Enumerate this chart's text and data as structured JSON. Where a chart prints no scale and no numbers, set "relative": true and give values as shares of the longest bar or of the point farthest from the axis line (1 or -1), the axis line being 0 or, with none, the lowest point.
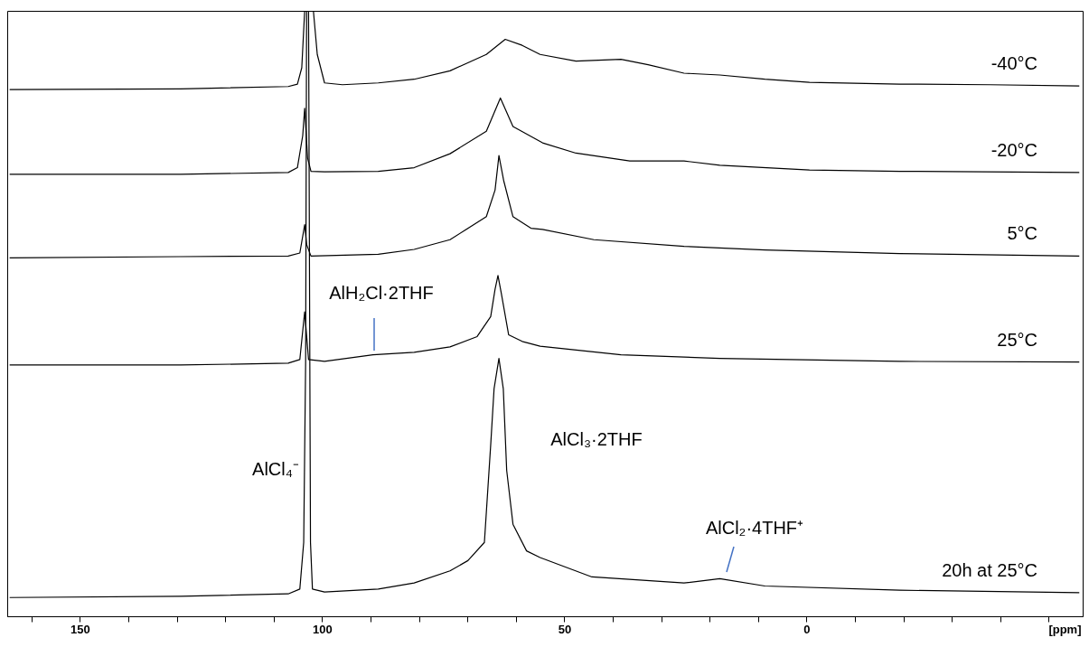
{
  "chart_data": {
    "type": "line",
    "relative": true,
    "xlabel": "[ppm]",
    "legend": false,
    "grid": false,
    "line_style": "solid",
    "xlim": [
      165,
      -57
    ],
    "xticks": [
      {
        "value": 160,
        "label": null
      },
      150,
      {
        "value": 140,
        "label": null
      },
      {
        "value": 130,
        "label": null
      },
      {
        "value": 120,
        "label": null
      },
      {
        "value": 110,
        "label": null
      },
      100,
      {
        "value": 90,
        "label": null
      },
      {
        "value": 80,
        "label": null
      },
      {
        "value": 70,
        "label": null
      },
      {
        "value": 60,
        "label": null
      },
      50,
      {
        "value": 40,
        "label": null
      },
      {
        "value": 30,
        "label": null
      },
      {
        "value": 20,
        "label": null
      },
      {
        "value": 10,
        "label": null
      },
      0,
      {
        "value": -10,
        "label": null
      },
      {
        "value": -20,
        "label": null
      },
      {
        "value": -30,
        "label": null
      },
      {
        "value": -40,
        "label": null
      },
      {
        "value": -50,
        "label": null
      }
    ],
    "series": [
      {
        "name": "-40°C",
        "color": "#000000",
        "x": [
          164.5,
          129.2,
          107.0,
          105.1,
          104.2,
          103.6,
          101.8,
          101.0,
          99.5,
          95.8,
          88.4,
          81.0,
          73.6,
          66.1,
          62.2,
          58.7,
          55.0,
          47.6,
          38.3,
          32.7,
          25.3,
          17.9,
          8.6,
          -0.6,
          -19.2,
          -37.8,
          -56.3
        ],
        "values": [
          0.87,
          0.871,
          0.875,
          0.879,
          0.906,
          1.0,
          1.0,
          0.928,
          0.881,
          0.878,
          0.881,
          0.887,
          0.901,
          0.928,
          0.953,
          0.943,
          0.928,
          0.917,
          0.92,
          0.911,
          0.897,
          0.894,
          0.887,
          0.882,
          0.879,
          0.878,
          0.876
        ]
      },
      {
        "name": "-20°C",
        "color": "#000000",
        "x": [
          164.5,
          129.2,
          107.0,
          105.1,
          104.0,
          103.6,
          103.0,
          102.3,
          99.5,
          88.4,
          81.0,
          73.6,
          66.1,
          63.2,
          60.6,
          54.5,
          47.6,
          36.5,
          25.3,
          17.9,
          -0.6,
          -19.2,
          -56.3
        ],
        "values": [
          0.73,
          0.73,
          0.733,
          0.741,
          0.794,
          0.839,
          0.757,
          0.735,
          0.734,
          0.735,
          0.741,
          0.764,
          0.801,
          0.856,
          0.809,
          0.782,
          0.765,
          0.752,
          0.752,
          0.745,
          0.737,
          0.735,
          0.733
        ]
      },
      {
        "name": "5°C",
        "color": "#000000",
        "x": [
          164.5,
          129.2,
          107.0,
          104.6,
          103.8,
          103.6,
          103.2,
          102.3,
          88.4,
          81.0,
          73.6,
          66.1,
          64.3,
          63.5,
          62.5,
          60.6,
          56.9,
          54.5,
          43.9,
          25.3,
          8.6,
          -19.2,
          -56.3
        ],
        "values": [
          0.592,
          0.594,
          0.595,
          0.6,
          0.637,
          0.647,
          0.614,
          0.595,
          0.598,
          0.606,
          0.622,
          0.66,
          0.704,
          0.761,
          0.719,
          0.66,
          0.641,
          0.639,
          0.622,
          0.611,
          0.605,
          0.599,
          0.595
        ]
      },
      {
        "name": "25°C",
        "color": "#000000",
        "x": [
          164.5,
          129.2,
          107.0,
          104.6,
          103.6,
          102.8,
          99.5,
          89.5,
          81.0,
          73.6,
          68.0,
          65.2,
          64.3,
          63.7,
          63.0,
          61.5,
          58.7,
          55.0,
          38.3,
          17.9,
          -19.2,
          -56.3
        ],
        "values": [
          0.415,
          0.415,
          0.418,
          0.424,
          0.503,
          0.424,
          0.421,
          0.432,
          0.436,
          0.445,
          0.462,
          0.495,
          0.54,
          0.563,
          0.533,
          0.465,
          0.454,
          0.446,
          0.432,
          0.426,
          0.421,
          0.42
        ]
      },
      {
        "name": "20h at 25°C",
        "color": "#000000",
        "x": [
          164.5,
          129.2,
          107.0,
          104.6,
          103.8,
          103.4,
          103.2,
          102.8,
          102.4,
          102.0,
          99.5,
          88.4,
          81.0,
          73.6,
          69.9,
          66.5,
          65.2,
          64.5,
          63.5,
          62.6,
          61.9,
          60.6,
          57.8,
          55.0,
          44.3,
          25.3,
          17.9,
          8.6,
          -19.2,
          -56.3
        ],
        "values": [
          0.031,
          0.033,
          0.037,
          0.045,
          0.122,
          0.421,
          1.0,
          1.0,
          0.122,
          0.045,
          0.04,
          0.045,
          0.055,
          0.075,
          0.092,
          0.122,
          0.283,
          0.376,
          0.426,
          0.376,
          0.241,
          0.152,
          0.108,
          0.097,
          0.065,
          0.055,
          0.062,
          0.05,
          0.043,
          0.039
        ]
      }
    ],
    "annotations": [
      "AlH₂Cl·2THF",
      "AlCl₃·2THF",
      "AlCl₄⁻",
      "AlCl₂·4THF⁺"
    ]
  }
}
